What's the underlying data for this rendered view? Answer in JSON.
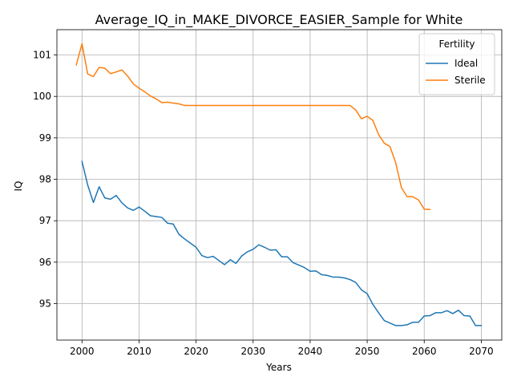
{
  "chart_data": {
    "type": "line",
    "title": "Average_IQ_in_MAKE_DIVORCE_EASIER_Sample for White",
    "xlabel": "Years",
    "ylabel": "IQ",
    "xlim": [
      1995.6,
      2073.6
    ],
    "ylim": [
      94.12,
      101.61
    ],
    "xticks": [
      2000,
      2010,
      2020,
      2030,
      2040,
      2050,
      2060,
      2070
    ],
    "yticks": [
      95,
      96,
      97,
      98,
      99,
      100,
      101
    ],
    "grid": true,
    "legend": {
      "title": "Fertility",
      "placement": "top-right"
    },
    "series": [
      {
        "name": "Ideal",
        "color": "#1f77b4",
        "x": [
          2000,
          2001,
          2002,
          2003,
          2004,
          2005,
          2006,
          2007,
          2008,
          2009,
          2010,
          2011,
          2012,
          2013,
          2014,
          2015,
          2016,
          2017,
          2018,
          2019,
          2020,
          2021,
          2022,
          2023,
          2024,
          2025,
          2026,
          2027,
          2028,
          2029,
          2030,
          2031,
          2032,
          2033,
          2034,
          2035,
          2036,
          2037,
          2038,
          2039,
          2040,
          2041,
          2042,
          2043,
          2044,
          2045,
          2046,
          2047,
          2048,
          2049,
          2050,
          2051,
          2052,
          2053,
          2054,
          2055,
          2056,
          2057,
          2058,
          2059,
          2060,
          2061,
          2062,
          2063,
          2064,
          2065,
          2066,
          2067,
          2068,
          2069,
          2070
        ],
        "values": [
          98.43,
          97.86,
          97.44,
          97.82,
          97.55,
          97.52,
          97.61,
          97.43,
          97.31,
          97.25,
          97.33,
          97.23,
          97.12,
          97.1,
          97.08,
          96.94,
          96.92,
          96.67,
          96.56,
          96.46,
          96.36,
          96.16,
          96.11,
          96.14,
          96.04,
          95.94,
          96.06,
          95.97,
          96.15,
          96.25,
          96.31,
          96.42,
          96.36,
          96.29,
          96.3,
          96.13,
          96.13,
          95.99,
          95.93,
          95.87,
          95.78,
          95.79,
          95.7,
          95.68,
          95.64,
          95.64,
          95.62,
          95.58,
          95.51,
          95.33,
          95.24,
          94.98,
          94.78,
          94.59,
          94.53,
          94.47,
          94.47,
          94.49,
          94.55,
          94.55,
          94.7,
          94.71,
          94.78,
          94.78,
          94.83,
          94.76,
          94.84,
          94.71,
          94.7,
          94.47,
          94.47
        ]
      },
      {
        "name": "Sterile",
        "color": "#ff7f0e",
        "x": [
          1999,
          2000,
          2001,
          2002,
          2003,
          2004,
          2005,
          2006,
          2007,
          2008,
          2009,
          2010,
          2011,
          2012,
          2013,
          2014,
          2015,
          2016,
          2017,
          2018,
          2019,
          2020,
          2021,
          2022,
          2023,
          2024,
          2025,
          2026,
          2027,
          2028,
          2029,
          2030,
          2031,
          2032,
          2033,
          2034,
          2035,
          2036,
          2037,
          2038,
          2039,
          2040,
          2041,
          2042,
          2043,
          2044,
          2045,
          2046,
          2047,
          2048,
          2049,
          2050,
          2051,
          2052,
          2053,
          2054,
          2055,
          2056,
          2057,
          2058,
          2059,
          2060,
          2061
        ],
        "values": [
          100.76,
          101.27,
          100.54,
          100.48,
          100.7,
          100.68,
          100.55,
          100.59,
          100.64,
          100.49,
          100.3,
          100.2,
          100.11,
          100.01,
          99.94,
          99.85,
          99.86,
          99.84,
          99.82,
          99.78,
          99.78,
          99.78,
          99.78,
          99.78,
          99.78,
          99.78,
          99.78,
          99.78,
          99.78,
          99.78,
          99.78,
          99.78,
          99.78,
          99.78,
          99.78,
          99.78,
          99.78,
          99.78,
          99.78,
          99.78,
          99.78,
          99.78,
          99.78,
          99.78,
          99.78,
          99.78,
          99.78,
          99.78,
          99.78,
          99.67,
          99.46,
          99.52,
          99.42,
          99.08,
          98.87,
          98.79,
          98.4,
          97.8,
          97.58,
          97.58,
          97.5,
          97.28,
          97.27
        ]
      }
    ]
  }
}
